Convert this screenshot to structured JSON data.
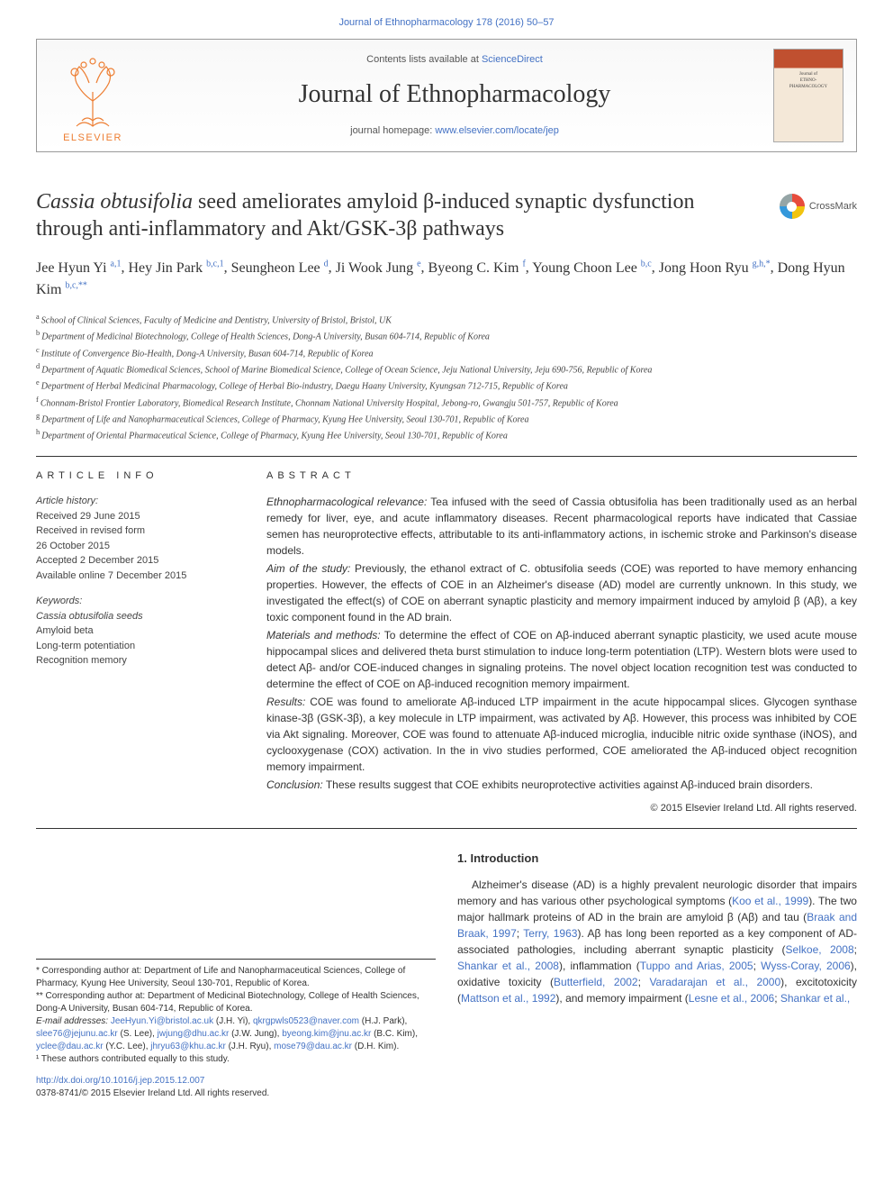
{
  "top_link": "Journal of Ethnopharmacology 178 (2016) 50–57",
  "header": {
    "contents_prefix": "Contents lists available at ",
    "contents_link": "ScienceDirect",
    "journal_title": "Journal of Ethnopharmacology",
    "homepage_prefix": "journal homepage: ",
    "homepage_link": "www.elsevier.com/locate/jep",
    "publisher": "ELSEVIER",
    "cover_text_1": "Journal of",
    "cover_text_2": "ETHNO-",
    "cover_text_3": "PHARMACOLOGY"
  },
  "crossmark_label": "CrossMark",
  "article": {
    "title_italic": "Cassia obtusifolia",
    "title_rest": " seed ameliorates amyloid β-induced synaptic dysfunction through anti-inflammatory and Akt/GSK-3β pathways",
    "authors_html": "Jee Hyun Yi",
    "authors": [
      {
        "name": "Jee Hyun Yi",
        "sup": "a,1"
      },
      {
        "name": "Hey Jin Park",
        "sup": "b,c,1"
      },
      {
        "name": "Seungheon Lee",
        "sup": "d"
      },
      {
        "name": "Ji Wook Jung",
        "sup": "e"
      },
      {
        "name": "Byeong C. Kim",
        "sup": "f"
      },
      {
        "name": "Young Choon Lee",
        "sup": "b,c"
      },
      {
        "name": "Jong Hoon Ryu",
        "sup": "g,h,*"
      },
      {
        "name": "Dong Hyun Kim",
        "sup": "b,c,**"
      }
    ],
    "affiliations": [
      {
        "key": "a",
        "text": "School of Clinical Sciences, Faculty of Medicine and Dentistry, University of Bristol, Bristol, UK"
      },
      {
        "key": "b",
        "text": "Department of Medicinal Biotechnology, College of Health Sciences, Dong-A University, Busan 604-714, Republic of Korea"
      },
      {
        "key": "c",
        "text": "Institute of Convergence Bio-Health, Dong-A University, Busan 604-714, Republic of Korea"
      },
      {
        "key": "d",
        "text": "Department of Aquatic Biomedical Sciences, School of Marine Biomedical Science, College of Ocean Science, Jeju National University, Jeju 690-756, Republic of Korea"
      },
      {
        "key": "e",
        "text": "Department of Herbal Medicinal Pharmacology, College of Herbal Bio-industry, Daegu Haany University, Kyungsan 712-715, Republic of Korea"
      },
      {
        "key": "f",
        "text": "Chonnam-Bristol Frontier Laboratory, Biomedical Research Institute, Chonnam National University Hospital, Jebong-ro, Gwangju 501-757, Republic of Korea"
      },
      {
        "key": "g",
        "text": "Department of Life and Nanopharmaceutical Sciences, College of Pharmacy, Kyung Hee University, Seoul 130-701, Republic of Korea"
      },
      {
        "key": "h",
        "text": "Department of Oriental Pharmaceutical Science, College of Pharmacy, Kyung Hee University, Seoul 130-701, Republic of Korea"
      }
    ]
  },
  "article_info": {
    "heading": "article info",
    "history_label": "Article history:",
    "history": [
      "Received 29 June 2015",
      "Received in revised form",
      "26 October 2015",
      "Accepted 2 December 2015",
      "Available online 7 December 2015"
    ],
    "keywords_label": "Keywords:",
    "keywords": [
      "Cassia obtusifolia seeds",
      "Amyloid beta",
      "Long-term potentiation",
      "Recognition memory"
    ]
  },
  "abstract": {
    "heading": "abstract",
    "parts": [
      {
        "lead": "Ethnopharmacological relevance:",
        "text": " Tea infused with the seed of Cassia obtusifolia has been traditionally used as an herbal remedy for liver, eye, and acute inflammatory diseases. Recent pharmacological reports have indicated that Cassiae semen has neuroprotective effects, attributable to its anti-inflammatory actions, in ischemic stroke and Parkinson's disease models."
      },
      {
        "lead": "Aim of the study:",
        "text": " Previously, the ethanol extract of C. obtusifolia seeds (COE) was reported to have memory enhancing properties. However, the effects of COE in an Alzheimer's disease (AD) model are currently unknown. In this study, we investigated the effect(s) of COE on aberrant synaptic plasticity and memory impairment induced by amyloid β (Aβ), a key toxic component found in the AD brain."
      },
      {
        "lead": "Materials and methods:",
        "text": " To determine the effect of COE on Aβ-induced aberrant synaptic plasticity, we used acute mouse hippocampal slices and delivered theta burst stimulation to induce long-term potentiation (LTP). Western blots were used to detect Aβ- and/or COE-induced changes in signaling proteins. The novel object location recognition test was conducted to determine the effect of COE on Aβ-induced recognition memory impairment."
      },
      {
        "lead": "Results:",
        "text": " COE was found to ameliorate Aβ-induced LTP impairment in the acute hippocampal slices. Glycogen synthase kinase-3β (GSK-3β), a key molecule in LTP impairment, was activated by Aβ. However, this process was inhibited by COE via Akt signaling. Moreover, COE was found to attenuate Aβ-induced microglia, inducible nitric oxide synthase (iNOS), and cyclooxygenase (COX) activation. In the in vivo studies performed, COE ameliorated the Aβ-induced object recognition memory impairment."
      },
      {
        "lead": "Conclusion:",
        "text": " These results suggest that COE exhibits neuroprotective activities against Aβ-induced brain disorders."
      }
    ],
    "copyright": "© 2015 Elsevier Ireland Ltd. All rights reserved."
  },
  "footnotes": {
    "corr1": "* Corresponding author at: Department of Life and Nanopharmaceutical Sciences, College of Pharmacy, Kyung Hee University, Seoul 130-701, Republic of Korea.",
    "corr2": "** Corresponding author at: Department of Medicinal Biotechnology, College of Health Sciences, Dong-A University, Busan 604-714, Republic of Korea.",
    "emails_label": "E-mail addresses:",
    "emails": [
      {
        "addr": "JeeHyun.Yi@bristol.ac.uk",
        "who": "(J.H. Yi),"
      },
      {
        "addr": "qkrgpwls0523@naver.com",
        "who": "(H.J. Park),"
      },
      {
        "addr": "slee76@jejunu.ac.kr",
        "who": "(S. Lee),"
      },
      {
        "addr": "jwjung@dhu.ac.kr",
        "who": "(J.W. Jung),"
      },
      {
        "addr": "byeong.kim@jnu.ac.kr",
        "who": "(B.C. Kim),"
      },
      {
        "addr": "yclee@dau.ac.kr",
        "who": "(Y.C. Lee),"
      },
      {
        "addr": "jhryu63@khu.ac.kr",
        "who": "(J.H. Ryu),"
      },
      {
        "addr": "mose79@dau.ac.kr",
        "who": "(D.H. Kim)."
      }
    ],
    "equal": "¹ These authors contributed equally to this study."
  },
  "intro": {
    "heading": "1.  Introduction",
    "body_prefix": "Alzheimer's disease (AD) is a highly prevalent neurologic disorder that impairs memory and has various other psychological symptoms (",
    "ref1": "Koo et al., 1999",
    "body_2": "). The two major hallmark proteins of AD in the brain are amyloid β (Aβ) and tau (",
    "ref2": "Braak and Braak, 1997",
    "sep1": "; ",
    "ref3": "Terry, 1963",
    "body_3": "). Aβ has long been reported as a key component of AD-associated pathologies, including aberrant synaptic plasticity (",
    "ref4": "Selkoe, 2008",
    "sep2": "; ",
    "ref5": "Shankar et al., 2008",
    "body_4": "), inflammation (",
    "ref6": "Tuppo and Arias, 2005",
    "sep3": "; ",
    "ref7": "Wyss-Coray, 2006",
    "body_5": "), oxidative toxicity (",
    "ref8": "Butterfield, 2002",
    "sep4": "; ",
    "ref9": "Varadarajan et al., 2000",
    "body_6": "), excitotoxicity (",
    "ref10": "Mattson et al., 1992",
    "body_7": "), and memory impairment (",
    "ref11": "Lesne et al., 2006",
    "sep5": "; ",
    "ref12": "Shankar et al.,"
  },
  "doi": {
    "link": "http://dx.doi.org/10.1016/j.jep.2015.12.007",
    "issn": "0378-8741/© 2015 Elsevier Ireland Ltd. All rights reserved."
  },
  "colors": {
    "link": "#4472c4",
    "accent": "#ed7d31",
    "text": "#333333",
    "rule": "#333333"
  }
}
